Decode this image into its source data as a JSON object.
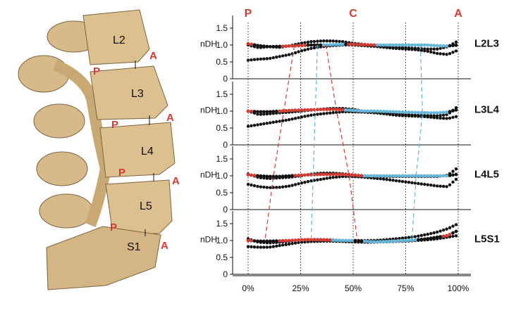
{
  "spine_illustration": {
    "vertebrae": [
      "L2",
      "L3",
      "L4",
      "L5",
      "S1"
    ],
    "posterior_marker": "P",
    "anterior_marker": "A"
  },
  "chart_data": {
    "type": "scatter",
    "header_labels": [
      "P",
      "C",
      "A"
    ],
    "x_ticks": [
      "0%",
      "25%",
      "50%",
      "75%",
      "100%"
    ],
    "x_tick_values": [
      0,
      25,
      50,
      75,
      100
    ],
    "ylabel": "nDH",
    "y_ticks": [
      "0",
      "0.5",
      "1.0",
      "1.5"
    ],
    "y_tick_values": [
      0,
      0.5,
      1.0,
      1.5
    ],
    "ylim": [
      0,
      1.75
    ],
    "grid_x": true,
    "colors": {
      "red": "#d33a32",
      "blue": "#63b6d8",
      "black": "#111111"
    },
    "panels": [
      {
        "level": "L2L3",
        "upper": [
          [
            0,
            1.0
          ],
          [
            5,
            0.92
          ],
          [
            10,
            0.95
          ],
          [
            15,
            0.93
          ],
          [
            20,
            0.98
          ],
          [
            25,
            1.05
          ],
          [
            30,
            1.1
          ],
          [
            35,
            1.12
          ],
          [
            40,
            1.12
          ],
          [
            45,
            1.1
          ],
          [
            50,
            1.05
          ],
          [
            55,
            1.02
          ],
          [
            60,
            0.98
          ],
          [
            65,
            0.95
          ],
          [
            70,
            0.93
          ],
          [
            75,
            0.92
          ],
          [
            80,
            0.9
          ],
          [
            85,
            0.88
          ],
          [
            90,
            0.88
          ],
          [
            95,
            0.95
          ],
          [
            100,
            1.12
          ]
        ],
        "lower": [
          [
            0,
            0.55
          ],
          [
            5,
            0.58
          ],
          [
            10,
            0.6
          ],
          [
            15,
            0.66
          ],
          [
            20,
            0.72
          ],
          [
            25,
            0.82
          ],
          [
            30,
            0.9
          ],
          [
            35,
            0.95
          ],
          [
            40,
            0.98
          ],
          [
            45,
            1.0
          ],
          [
            50,
            1.0
          ],
          [
            55,
            0.98
          ],
          [
            60,
            0.96
          ],
          [
            65,
            0.93
          ],
          [
            70,
            0.9
          ],
          [
            75,
            0.88
          ],
          [
            80,
            0.86
          ],
          [
            85,
            0.82
          ],
          [
            90,
            0.75
          ],
          [
            95,
            0.72
          ],
          [
            100,
            0.85
          ]
        ],
        "mid": [
          [
            0,
            1.04
          ],
          [
            5,
            0.98
          ],
          [
            10,
            0.95
          ],
          [
            15,
            0.96
          ],
          [
            20,
            0.97
          ],
          [
            25,
            0.98
          ],
          [
            30,
            1.0
          ],
          [
            35,
            1.0
          ],
          [
            40,
            1.01
          ],
          [
            45,
            1.02
          ],
          [
            50,
            1.02
          ],
          [
            55,
            1.01
          ],
          [
            60,
            1.0
          ],
          [
            65,
            1.0
          ],
          [
            70,
            1.0
          ],
          [
            75,
            1.0
          ],
          [
            80,
            1.0
          ],
          [
            85,
            1.0
          ],
          [
            90,
            0.98
          ],
          [
            95,
            0.97
          ],
          [
            100,
            1.0
          ]
        ],
        "red_ranges": [
          [
            0,
            2
          ],
          [
            16,
            27
          ],
          [
            48,
            60
          ]
        ],
        "blue_ranges": [
          [
            35,
            45
          ],
          [
            60,
            95
          ]
        ]
      },
      {
        "level": "L3L4",
        "upper": [
          [
            0,
            1.0
          ],
          [
            5,
            0.9
          ],
          [
            10,
            0.92
          ],
          [
            15,
            0.95
          ],
          [
            20,
            0.97
          ],
          [
            25,
            1.0
          ],
          [
            30,
            1.03
          ],
          [
            35,
            1.06
          ],
          [
            40,
            1.08
          ],
          [
            45,
            1.08
          ],
          [
            50,
            1.05
          ],
          [
            55,
            1.0
          ],
          [
            60,
            0.98
          ],
          [
            65,
            0.95
          ],
          [
            70,
            0.92
          ],
          [
            75,
            0.9
          ],
          [
            80,
            0.88
          ],
          [
            85,
            0.87
          ],
          [
            90,
            0.86
          ],
          [
            95,
            0.9
          ],
          [
            100,
            1.15
          ]
        ],
        "lower": [
          [
            0,
            0.55
          ],
          [
            5,
            0.6
          ],
          [
            10,
            0.65
          ],
          [
            15,
            0.7
          ],
          [
            20,
            0.75
          ],
          [
            25,
            0.82
          ],
          [
            30,
            0.88
          ],
          [
            35,
            0.92
          ],
          [
            40,
            0.95
          ],
          [
            45,
            0.98
          ],
          [
            50,
            0.98
          ],
          [
            55,
            0.97
          ],
          [
            60,
            0.95
          ],
          [
            65,
            0.92
          ],
          [
            70,
            0.88
          ],
          [
            75,
            0.86
          ],
          [
            80,
            0.85
          ],
          [
            85,
            0.83
          ],
          [
            90,
            0.8
          ],
          [
            95,
            0.78
          ],
          [
            100,
            0.85
          ]
        ],
        "mid": [
          [
            0,
            1.0
          ],
          [
            5,
            0.98
          ],
          [
            10,
            0.98
          ],
          [
            15,
            1.0
          ],
          [
            20,
            1.02
          ],
          [
            25,
            1.03
          ],
          [
            30,
            1.04
          ],
          [
            35,
            1.05
          ],
          [
            40,
            1.05
          ],
          [
            45,
            1.04
          ],
          [
            50,
            1.02
          ],
          [
            55,
            1.0
          ],
          [
            60,
            1.0
          ],
          [
            65,
            0.99
          ],
          [
            70,
            0.98
          ],
          [
            75,
            0.97
          ],
          [
            80,
            0.96
          ],
          [
            85,
            0.95
          ],
          [
            90,
            0.95
          ],
          [
            95,
            0.97
          ],
          [
            100,
            1.05
          ]
        ],
        "red_ranges": [
          [
            0,
            2
          ],
          [
            15,
            45
          ]
        ],
        "blue_ranges": [
          [
            40,
            50
          ],
          [
            50,
            95
          ]
        ]
      },
      {
        "level": "L4L5",
        "upper": [
          [
            0,
            1.05
          ],
          [
            5,
            0.95
          ],
          [
            10,
            0.92
          ],
          [
            15,
            0.94
          ],
          [
            20,
            0.96
          ],
          [
            25,
            1.0
          ],
          [
            30,
            1.05
          ],
          [
            35,
            1.08
          ],
          [
            40,
            1.08
          ],
          [
            45,
            1.06
          ],
          [
            50,
            1.03
          ],
          [
            55,
            1.0
          ],
          [
            60,
            0.99
          ],
          [
            65,
            0.98
          ],
          [
            70,
            0.98
          ],
          [
            75,
            0.98
          ],
          [
            80,
            0.98
          ],
          [
            85,
            0.98
          ],
          [
            90,
            0.98
          ],
          [
            95,
            1.02
          ],
          [
            100,
            1.25
          ]
        ],
        "lower": [
          [
            0,
            0.75
          ],
          [
            5,
            0.68
          ],
          [
            10,
            0.65
          ],
          [
            15,
            0.66
          ],
          [
            20,
            0.7
          ],
          [
            25,
            0.78
          ],
          [
            30,
            0.85
          ],
          [
            35,
            0.9
          ],
          [
            40,
            0.95
          ],
          [
            45,
            0.98
          ],
          [
            50,
            0.98
          ],
          [
            55,
            0.96
          ],
          [
            60,
            0.93
          ],
          [
            65,
            0.9
          ],
          [
            70,
            0.86
          ],
          [
            75,
            0.82
          ],
          [
            80,
            0.78
          ],
          [
            85,
            0.74
          ],
          [
            90,
            0.7
          ],
          [
            95,
            0.68
          ],
          [
            100,
            0.95
          ]
        ],
        "mid": [
          [
            0,
            1.03
          ],
          [
            5,
            1.0
          ],
          [
            10,
            0.98
          ],
          [
            15,
            0.98
          ],
          [
            20,
            1.0
          ],
          [
            25,
            1.02
          ],
          [
            30,
            1.03
          ],
          [
            35,
            1.04
          ],
          [
            40,
            1.04
          ],
          [
            45,
            1.04
          ],
          [
            50,
            1.02
          ],
          [
            55,
            1.0
          ],
          [
            60,
            1.0
          ],
          [
            65,
            1.0
          ],
          [
            70,
            1.0
          ],
          [
            75,
            1.0
          ],
          [
            80,
            1.0
          ],
          [
            85,
            1.0
          ],
          [
            90,
            1.0
          ],
          [
            95,
            1.0
          ],
          [
            100,
            1.05
          ]
        ],
        "red_ranges": [
          [
            0,
            4
          ],
          [
            22,
            55
          ]
        ],
        "blue_ranges": [
          [
            43,
            50
          ],
          [
            55,
            95
          ]
        ]
      },
      {
        "level": "L5S1",
        "upper": [
          [
            0,
            1.05
          ],
          [
            5,
            0.95
          ],
          [
            10,
            0.93
          ],
          [
            15,
            0.95
          ],
          [
            20,
            0.98
          ],
          [
            25,
            1.02
          ],
          [
            30,
            1.03
          ],
          [
            35,
            1.03
          ],
          [
            40,
            1.02
          ],
          [
            45,
            1.0
          ],
          [
            50,
            1.0
          ],
          [
            55,
            1.0
          ],
          [
            60,
            1.0
          ],
          [
            65,
            1.02
          ],
          [
            70,
            1.05
          ],
          [
            75,
            1.08
          ],
          [
            80,
            1.12
          ],
          [
            85,
            1.18
          ],
          [
            90,
            1.25
          ],
          [
            95,
            1.35
          ],
          [
            100,
            1.5
          ]
        ],
        "lower": [
          [
            0,
            0.82
          ],
          [
            5,
            0.8
          ],
          [
            10,
            0.8
          ],
          [
            15,
            0.85
          ],
          [
            20,
            0.9
          ],
          [
            25,
            0.95
          ],
          [
            30,
            0.97
          ],
          [
            35,
            0.98
          ],
          [
            40,
            0.98
          ],
          [
            45,
            0.97
          ],
          [
            50,
            0.96
          ],
          [
            55,
            0.95
          ],
          [
            60,
            0.95
          ],
          [
            65,
            0.96
          ],
          [
            70,
            0.97
          ],
          [
            75,
            0.98
          ],
          [
            80,
            1.0
          ],
          [
            85,
            1.02
          ],
          [
            90,
            1.05
          ],
          [
            95,
            1.1
          ],
          [
            100,
            1.15
          ]
        ],
        "mid": [
          [
            0,
            1.0
          ],
          [
            5,
            0.98
          ],
          [
            10,
            0.98
          ],
          [
            15,
            0.99
          ],
          [
            20,
            1.0
          ],
          [
            25,
            1.02
          ],
          [
            30,
            1.03
          ],
          [
            35,
            1.02
          ],
          [
            40,
            1.01
          ],
          [
            45,
            1.0
          ],
          [
            50,
            1.0
          ],
          [
            55,
            0.98
          ],
          [
            60,
            0.96
          ],
          [
            65,
            0.97
          ],
          [
            70,
            0.98
          ],
          [
            75,
            1.0
          ],
          [
            80,
            1.02
          ],
          [
            85,
            1.05
          ],
          [
            90,
            1.1
          ],
          [
            95,
            1.15
          ],
          [
            100,
            1.3
          ]
        ],
        "red_ranges": [
          [
            0,
            2
          ],
          [
            14,
            40
          ],
          [
            93,
            96
          ]
        ],
        "blue_ranges": [
          [
            30,
            50
          ],
          [
            55,
            80
          ]
        ]
      }
    ]
  }
}
